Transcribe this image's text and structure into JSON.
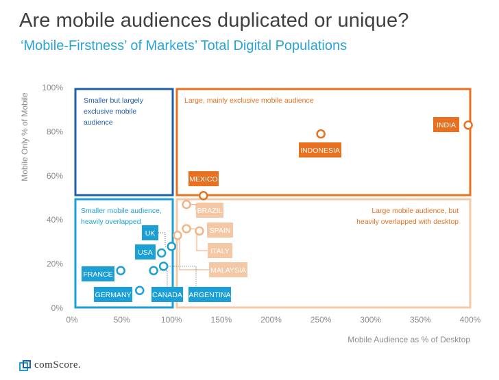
{
  "header": {
    "title": "Are mobile audiences duplicated or unique?",
    "subtitle": "‘Mobile-Firstness’ of Markets’ Total Digital Populations"
  },
  "logo": {
    "text": "comScore."
  },
  "colors": {
    "dark_blue": "#1f5fa8",
    "blue": "#1a9fd6",
    "orange": "#e8701e",
    "light_orange": "#f5c8a5",
    "axis_text": "#8a8a8a"
  },
  "chart_data": {
    "type": "scatter",
    "title": "",
    "xlabel": "Mobile Audience as % of Desktop",
    "ylabel": "Mobile Only % of Mobile",
    "xlim": [
      0,
      400
    ],
    "ylim": [
      0,
      100
    ],
    "x_ticks": [
      "0%",
      "50%",
      "100%",
      "150%",
      "200%",
      "250%",
      "300%",
      "350%",
      "400%"
    ],
    "y_ticks": [
      "0%",
      "20%",
      "40%",
      "60%",
      "80%",
      "100%"
    ],
    "quadrants": [
      {
        "name": "top-left",
        "label_lines": [
          "Smaller but largely",
          "exclusive mobile",
          "audience"
        ],
        "color": "#1f5fa8"
      },
      {
        "name": "top-right",
        "label_lines": [
          "Large, mainly exclusive mobile audience"
        ],
        "color": "#e8701e"
      },
      {
        "name": "bottom-left",
        "label_lines": [
          "Smaller mobile audience,",
          "heavily overlapped"
        ],
        "color": "#1a9fd6"
      },
      {
        "name": "bottom-right",
        "label_lines": [
          "Large mobile audience, but",
          "heavily overlapped with desktop"
        ],
        "color": "#f5c8a5"
      }
    ],
    "points": [
      {
        "name": "INDIA",
        "x": 398,
        "y": 83,
        "group": "orange"
      },
      {
        "name": "INDONESIA",
        "x": 250,
        "y": 79,
        "group": "orange"
      },
      {
        "name": "MEXICO",
        "x": 132,
        "y": 51,
        "group": "orange"
      },
      {
        "name": "BRAZIL",
        "x": 115,
        "y": 47,
        "group": "light"
      },
      {
        "name": "SPAIN",
        "x": 128,
        "y": 35,
        "group": "light"
      },
      {
        "name": "ITALY",
        "x": 115,
        "y": 36,
        "group": "light"
      },
      {
        "name": "MALAYSIA",
        "x": 106,
        "y": 33,
        "group": "light"
      },
      {
        "name": "UK",
        "x": 100,
        "y": 28,
        "group": "blue"
      },
      {
        "name": "USA",
        "x": 90,
        "y": 25,
        "group": "blue"
      },
      {
        "name": "FRANCE",
        "x": 49,
        "y": 17,
        "group": "blue"
      },
      {
        "name": "GERMANY",
        "x": 68,
        "y": 8,
        "group": "blue"
      },
      {
        "name": "CANADA",
        "x": 82,
        "y": 17,
        "group": "blue"
      },
      {
        "name": "ARGENTINA",
        "x": 92,
        "y": 19,
        "group": "blue"
      }
    ]
  }
}
